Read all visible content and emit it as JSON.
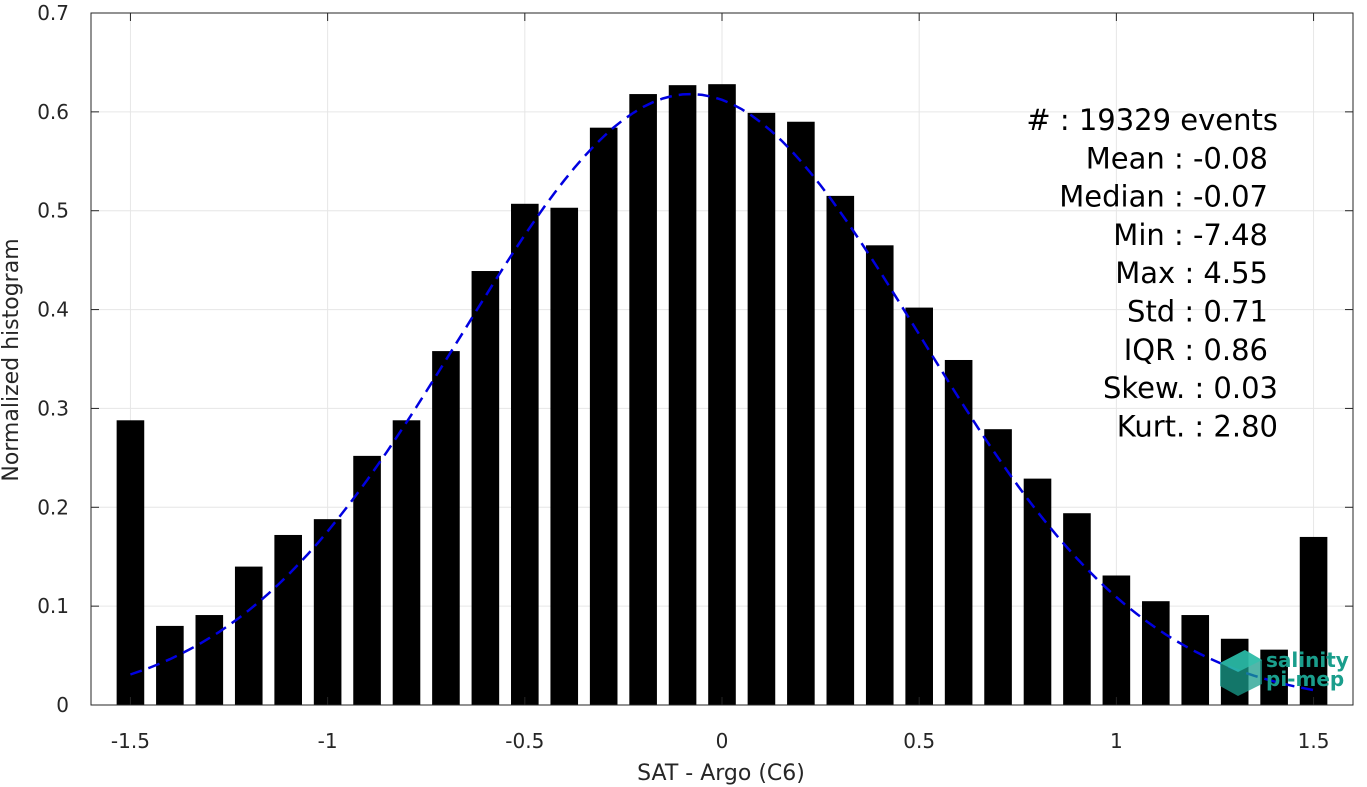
{
  "chart_data": {
    "type": "bar",
    "xlabel": "SAT - Argo (C6)",
    "ylabel": "Normalized histogram",
    "xlim": [
      -1.6,
      1.6
    ],
    "ylim": [
      0,
      0.7
    ],
    "xticks": [
      -1.5,
      -1,
      -0.5,
      0,
      0.5,
      1,
      1.5
    ],
    "xtick_labels": [
      "-1.5",
      "-1",
      "-0.5",
      "0",
      "0.5",
      "1",
      "1.5"
    ],
    "yticks": [
      0,
      0.1,
      0.2,
      0.3,
      0.4,
      0.5,
      0.6,
      0.7
    ],
    "ytick_labels": [
      "0",
      "0.1",
      "0.2",
      "0.3",
      "0.4",
      "0.5",
      "0.6",
      "0.7"
    ],
    "grid": true,
    "bar_color": "#000000",
    "fit_color": "#0000e0",
    "bins": {
      "x": [
        -1.5,
        -1.4,
        -1.3,
        -1.2,
        -1.1,
        -1.0,
        -0.9,
        -0.8,
        -0.7,
        -0.6,
        -0.5,
        -0.4,
        -0.3,
        -0.2,
        -0.1,
        0.0,
        0.1,
        0.2,
        0.3,
        0.4,
        0.5,
        0.6,
        0.7,
        0.8,
        0.9,
        1.0,
        1.1,
        1.2,
        1.3,
        1.4,
        1.5
      ],
      "values": [
        0.288,
        0.08,
        0.091,
        0.14,
        0.172,
        0.188,
        0.252,
        0.288,
        0.358,
        0.439,
        0.507,
        0.503,
        0.584,
        0.618,
        0.627,
        0.628,
        0.599,
        0.59,
        0.515,
        0.465,
        0.402,
        0.349,
        0.279,
        0.229,
        0.194,
        0.131,
        0.105,
        0.091,
        0.067,
        0.056,
        0.17
      ]
    },
    "fit_curve": {
      "style": "dashed",
      "mean": -0.08,
      "peak": 0.618,
      "sigma": 0.58,
      "x_range": [
        -1.5,
        1.5
      ]
    },
    "annotations": [
      "#  : 19329 events",
      "Mean : -0.08",
      "Median : -0.07",
      "Min : -7.48",
      "Max : 4.55",
      "Std : 0.71",
      "IQR : 0.86",
      "Skew. : 0.03",
      "Kurt. : 2.80"
    ]
  },
  "logo": {
    "line1": "salinity",
    "line2": "pi-mep",
    "color": "#1a9e8c"
  }
}
